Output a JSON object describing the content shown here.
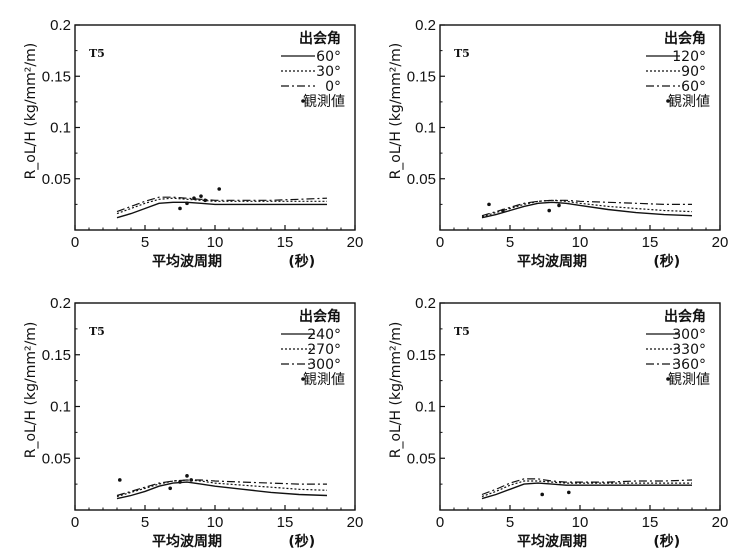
{
  "chart_data": [
    {
      "type": "line",
      "panel_label": "T5",
      "xlabel": "平均波周期",
      "xunit": "(秒)",
      "ylabel": "R_oL/H (kg/mm²/m)",
      "xlim": [
        0,
        20
      ],
      "ylim": [
        0,
        0.2
      ],
      "xticks": [
        "0",
        "5",
        "10",
        "15",
        "20"
      ],
      "yticks": [
        "0.05",
        "0.1",
        "0.15",
        "0.2"
      ],
      "legend_title": "出会角",
      "legend_obs": "観測値",
      "x": [
        3,
        4,
        5,
        6,
        7,
        8,
        9,
        10,
        12,
        14,
        16,
        18
      ],
      "series": [
        {
          "name": "60°",
          "style": "solid",
          "values": [
            0.012,
            0.016,
            0.021,
            0.026,
            0.027,
            0.027,
            0.026,
            0.025,
            0.025,
            0.025,
            0.025,
            0.025
          ]
        },
        {
          "name": "30°",
          "style": "dotted",
          "values": [
            0.016,
            0.021,
            0.026,
            0.03,
            0.031,
            0.03,
            0.029,
            0.028,
            0.028,
            0.028,
            0.028,
            0.028
          ]
        },
        {
          "name": "0°",
          "style": "dashdot",
          "values": [
            0.018,
            0.023,
            0.028,
            0.032,
            0.032,
            0.031,
            0.03,
            0.029,
            0.029,
            0.029,
            0.03,
            0.031
          ]
        }
      ],
      "observed": [
        [
          7.5,
          0.021
        ],
        [
          8.0,
          0.026
        ],
        [
          8.5,
          0.031
        ],
        [
          9.0,
          0.033
        ],
        [
          9.3,
          0.029
        ],
        [
          10.3,
          0.04
        ]
      ]
    },
    {
      "type": "line",
      "panel_label": "T5",
      "xlabel": "平均波周期",
      "xunit": "(秒)",
      "ylabel": "R_oL/H (kg/mm²/m)",
      "xlim": [
        0,
        20
      ],
      "ylim": [
        0,
        0.2
      ],
      "xticks": [
        "0",
        "5",
        "10",
        "15",
        "20"
      ],
      "yticks": [
        "0.05",
        "0.1",
        "0.15",
        "0.2"
      ],
      "legend_title": "出会角",
      "legend_obs": "観測値",
      "x": [
        3,
        4,
        5,
        6,
        7,
        8,
        9,
        10,
        12,
        14,
        16,
        18
      ],
      "series": [
        {
          "name": "120°",
          "style": "solid",
          "values": [
            0.012,
            0.015,
            0.019,
            0.023,
            0.026,
            0.027,
            0.026,
            0.024,
            0.02,
            0.017,
            0.015,
            0.014
          ]
        },
        {
          "name": "90°",
          "style": "dotted",
          "values": [
            0.013,
            0.017,
            0.021,
            0.025,
            0.028,
            0.029,
            0.028,
            0.026,
            0.023,
            0.021,
            0.019,
            0.018
          ]
        },
        {
          "name": "60°",
          "style": "dashdot",
          "values": [
            0.014,
            0.018,
            0.022,
            0.026,
            0.028,
            0.029,
            0.029,
            0.028,
            0.027,
            0.026,
            0.025,
            0.025
          ]
        }
      ],
      "observed": [
        [
          3.5,
          0.025
        ],
        [
          4.5,
          0.019
        ],
        [
          7.8,
          0.019
        ],
        [
          8.5,
          0.024
        ]
      ]
    },
    {
      "type": "line",
      "panel_label": "T5",
      "xlabel": "平均波周期",
      "xunit": "(秒)",
      "ylabel": "R_oL/H (kg/mm²/m)",
      "xlim": [
        0,
        20
      ],
      "ylim": [
        0,
        0.2
      ],
      "xticks": [
        "0",
        "5",
        "10",
        "15",
        "20"
      ],
      "yticks": [
        "0.05",
        "0.1",
        "0.15",
        "0.2"
      ],
      "legend_title": "出会角",
      "legend_obs": "観測値",
      "x": [
        3,
        4,
        5,
        6,
        7,
        8,
        9,
        10,
        12,
        14,
        16,
        18
      ],
      "series": [
        {
          "name": "240°",
          "style": "solid",
          "values": [
            0.011,
            0.014,
            0.018,
            0.023,
            0.026,
            0.027,
            0.025,
            0.023,
            0.02,
            0.017,
            0.015,
            0.014
          ]
        },
        {
          "name": "270°",
          "style": "dotted",
          "values": [
            0.013,
            0.017,
            0.021,
            0.025,
            0.028,
            0.029,
            0.028,
            0.026,
            0.024,
            0.022,
            0.02,
            0.019
          ]
        },
        {
          "name": "300°",
          "style": "dashdot",
          "values": [
            0.014,
            0.018,
            0.022,
            0.026,
            0.028,
            0.029,
            0.029,
            0.028,
            0.027,
            0.026,
            0.025,
            0.025
          ]
        }
      ],
      "observed": [
        [
          3.2,
          0.029
        ],
        [
          6.8,
          0.021
        ],
        [
          7.5,
          0.027
        ],
        [
          8.0,
          0.033
        ],
        [
          8.3,
          0.029
        ]
      ]
    },
    {
      "type": "line",
      "panel_label": "T5",
      "xlabel": "平均波周期",
      "xunit": "(秒)",
      "ylabel": "R_oL/H (kg/mm²/m)",
      "xlim": [
        0,
        20
      ],
      "ylim": [
        0,
        0.2
      ],
      "xticks": [
        "0",
        "5",
        "10",
        "15",
        "20"
      ],
      "yticks": [
        "0.05",
        "0.1",
        "0.15",
        "0.2"
      ],
      "legend_title": "出会角",
      "legend_obs": "観測値",
      "x": [
        3,
        4,
        5,
        6,
        7,
        8,
        9,
        10,
        12,
        14,
        16,
        18
      ],
      "series": [
        {
          "name": "300°",
          "style": "solid",
          "values": [
            0.011,
            0.015,
            0.02,
            0.025,
            0.026,
            0.025,
            0.024,
            0.024,
            0.024,
            0.024,
            0.024,
            0.024
          ]
        },
        {
          "name": "330°",
          "style": "dotted",
          "values": [
            0.013,
            0.018,
            0.024,
            0.028,
            0.028,
            0.027,
            0.026,
            0.026,
            0.026,
            0.026,
            0.026,
            0.026
          ]
        },
        {
          "name": "360°",
          "style": "dashdot",
          "values": [
            0.015,
            0.02,
            0.026,
            0.03,
            0.03,
            0.028,
            0.027,
            0.027,
            0.027,
            0.028,
            0.028,
            0.029
          ]
        }
      ],
      "observed": [
        [
          7.3,
          0.015
        ],
        [
          9.2,
          0.017
        ]
      ]
    }
  ]
}
